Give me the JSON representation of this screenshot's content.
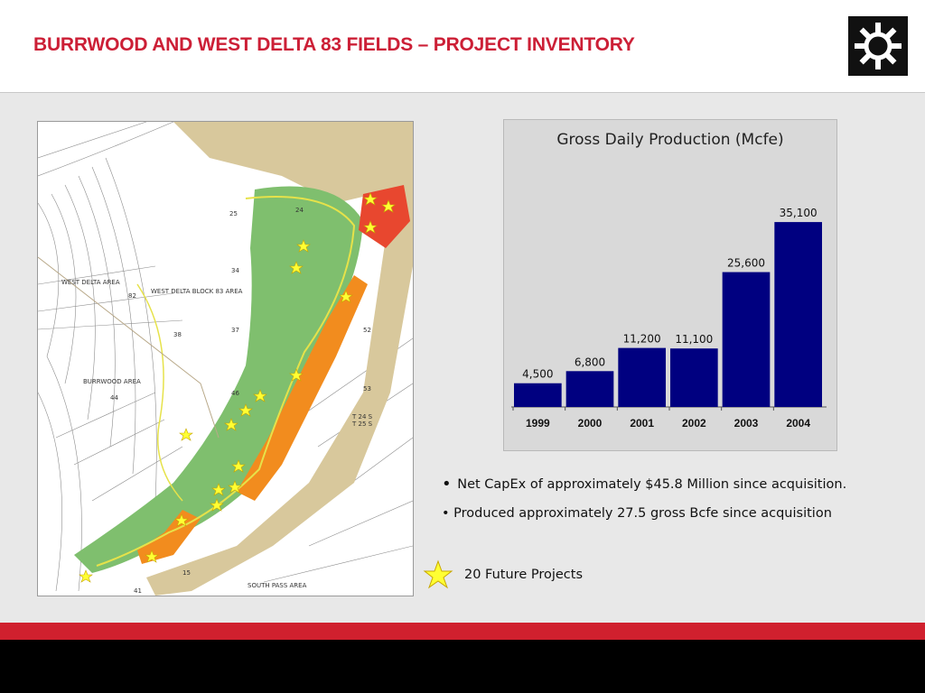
{
  "header": {
    "title": "BURRWOOD AND WEST DELTA 83 FIELDS – PROJECT INVENTORY",
    "logo_icon": "sun-gear-icon"
  },
  "map": {
    "labels": {
      "west_delta_area": "WEST DELTA AREA",
      "west_delta_block": "WEST DELTA BLOCK 83 AREA",
      "burrwood_area": "BURRWOOD AREA",
      "south_pass_area": "SOUTH PASS AREA",
      "block_25": "25",
      "block_24": "24",
      "block_34": "34",
      "block_82": "82",
      "block_38": "38",
      "block_37": "37",
      "block_52": "52",
      "block_53": "53",
      "block_44": "44",
      "block_46": "46",
      "block_15": "15",
      "block_41": "41",
      "township_1": "T 24 S",
      "township_2": "T 25 S"
    },
    "colors": {
      "green": "#7fbf6e",
      "orange": "#f28c1e",
      "red": "#e8472f",
      "land": "#d8c89c",
      "star": "#ffff33"
    }
  },
  "chart_data": {
    "type": "bar",
    "title": "Gross Daily Production (Mcfe)",
    "categories": [
      "1999",
      "2000",
      "2001",
      "2002",
      "2003",
      "2004"
    ],
    "values": [
      4500,
      6800,
      11200,
      11100,
      25600,
      35100
    ],
    "data_labels": [
      "4,500",
      "6,800",
      "11,200",
      "11,100",
      "25,600",
      "35,100"
    ],
    "ylim": [
      0,
      37000
    ],
    "grid": false,
    "bar_color": "#000080"
  },
  "bullets": [
    "Net CapEx of approximately $45.8 Million since acquisition.",
    "Produced approximately 27.5 gross Bcfe since acquisition"
  ],
  "legend": {
    "icon": "star-icon",
    "text": "20 Future Projects"
  },
  "footer": {
    "red_band_color": "#d0202e",
    "black_band_color": "#000000"
  }
}
